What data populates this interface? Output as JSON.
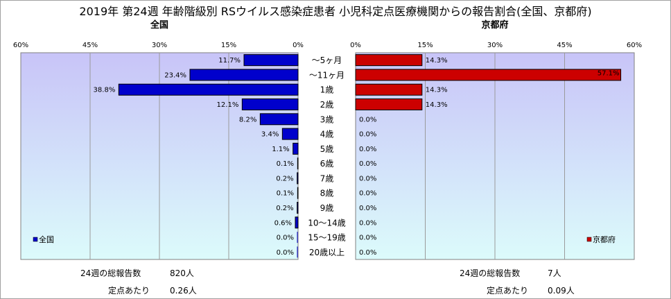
{
  "title": "2019年 第24週 年齢階級別 RSウイルス感染症患者 小児科定点医療機関からの報告割合(全国、京都府)",
  "colors": {
    "national": "#0000cc",
    "kyoto": "#cc0000"
  },
  "chart_data": {
    "type": "bar",
    "orientation": "horizontal-butterfly",
    "categories": [
      "～5ヶ月",
      "～11ヶ月",
      "1歳",
      "2歳",
      "3歳",
      "4歳",
      "5歳",
      "6歳",
      "7歳",
      "8歳",
      "9歳",
      "10～14歳",
      "15～19歳",
      "20歳以上"
    ],
    "xlim": [
      0,
      60
    ],
    "ticks": [
      "0%",
      "15%",
      "30%",
      "45%",
      "60%"
    ],
    "series": [
      {
        "name": "全国",
        "title": "全国",
        "legend": "全国",
        "values": [
          11.7,
          23.4,
          38.8,
          12.1,
          8.2,
          3.4,
          1.1,
          0.1,
          0.2,
          0.1,
          0.2,
          0.6,
          0.0,
          0.0
        ],
        "labels": [
          "11.7%",
          "23.4%",
          "38.8%",
          "12.1%",
          "8.2%",
          "3.4%",
          "1.1%",
          "0.1%",
          "0.2%",
          "0.1%",
          "0.2%",
          "0.6%",
          "0.0%",
          "0.0%"
        ]
      },
      {
        "name": "京都府",
        "title": "京都府",
        "legend": "京都府",
        "values": [
          14.3,
          57.1,
          14.3,
          14.3,
          0.0,
          0.0,
          0.0,
          0.0,
          0.0,
          0.0,
          0.0,
          0.0,
          0.0,
          0.0
        ],
        "labels": [
          "14.3%",
          "57.1%",
          "14.3%",
          "14.3%",
          "0.0%",
          "0.0%",
          "0.0%",
          "0.0%",
          "0.0%",
          "0.0%",
          "0.0%",
          "0.0%",
          "0.0%",
          "0.0%"
        ]
      }
    ]
  },
  "stats": {
    "national": {
      "total_label": "24週の総報告数",
      "total_value": "820人",
      "per_label": "定点あたり",
      "per_value": "0.26人"
    },
    "kyoto": {
      "total_label": "24週の総報告数",
      "total_value": "7人",
      "per_label": "定点あたり",
      "per_value": "0.09人"
    }
  }
}
